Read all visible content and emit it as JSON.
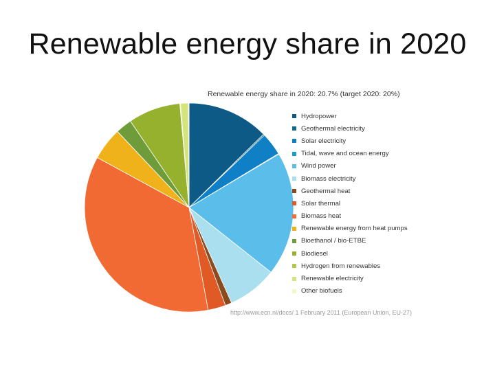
{
  "slide": {
    "title": "Renewable energy share in 2020"
  },
  "chart_data": {
    "type": "pie",
    "title": "Renewable energy share in 2020: 20.7% (target 2020: 20%)",
    "source": "http://www.ecn.nl/docs/ 1 February 2011 (European Union, EU-27)",
    "legend_position": "right",
    "slices": [
      {
        "label": "Hydropower",
        "value": 12.5,
        "color": "#0d5a86"
      },
      {
        "label": "Geothermal electricity",
        "value": 0.2,
        "color": "#0e6b8e"
      },
      {
        "label": "Solar electricity",
        "value": 3.5,
        "color": "#0f7fc6"
      },
      {
        "label": "Tidal, wave and ocean energy",
        "value": 0.1,
        "color": "#1a9bd7"
      },
      {
        "label": "Wind power",
        "value": 19.0,
        "color": "#5bbde9"
      },
      {
        "label": "Biomass electricity",
        "value": 7.6,
        "color": "#aadff0"
      },
      {
        "label": "Geothermal heat",
        "value": 1.0,
        "color": "#8a4b1f"
      },
      {
        "label": "Solar thermal",
        "value": 2.7,
        "color": "#e05a26"
      },
      {
        "label": "Biomass heat",
        "value": 35.5,
        "color": "#f26a33"
      },
      {
        "label": "Renewable energy from heat pumps",
        "value": 5.0,
        "color": "#f0b21a"
      },
      {
        "label": "Bioethanol / bio-ETBE",
        "value": 2.5,
        "color": "#6e9c3a"
      },
      {
        "label": "Biodiesel",
        "value": 8.0,
        "color": "#96b12e"
      },
      {
        "label": "Hydrogen from renewables",
        "value": 0.1,
        "color": "#b6c94a"
      },
      {
        "label": "Renewable electricity",
        "value": 1.2,
        "color": "#d4e57e"
      },
      {
        "label": "Other biofuels",
        "value": 0.1,
        "color": "#f4f7c8"
      }
    ]
  }
}
